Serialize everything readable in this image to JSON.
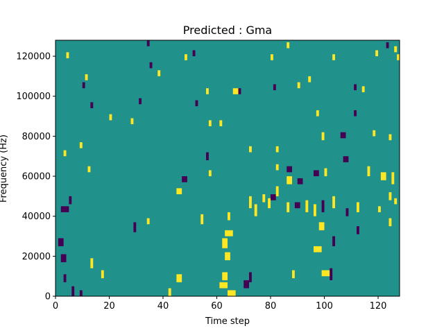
{
  "chart_data": {
    "type": "heatmap",
    "title": "Predicted : Gma",
    "xlabel": "Time step",
    "ylabel": "Frequency (Hz)",
    "xlim": [
      0,
      128
    ],
    "ylim": [
      0,
      128000
    ],
    "xticks": [
      0,
      20,
      40,
      60,
      80,
      100,
      120
    ],
    "yticks": [
      0,
      20000,
      40000,
      60000,
      80000,
      100000,
      120000
    ],
    "xtick_labels": [
      "0",
      "20",
      "40",
      "60",
      "80",
      "100",
      "120"
    ],
    "ytick_labels": [
      "0",
      "20000",
      "40000",
      "60000",
      "80000",
      "100000",
      "120000"
    ],
    "grid": false,
    "colormap": "viridis",
    "colors": {
      "background": "#21918c",
      "high": "#fde725",
      "low": "#440154"
    },
    "background_value": 0,
    "cells": [
      {
        "x": 64,
        "y": 0,
        "w": 3,
        "h": 3,
        "v": 1
      },
      {
        "x": 61,
        "y": 4,
        "w": 3,
        "h": 3,
        "v": 1
      },
      {
        "x": 70,
        "y": 4,
        "w": 2,
        "h": 4,
        "v": -1
      },
      {
        "x": 42,
        "y": 0,
        "w": 1,
        "h": 4,
        "v": 1
      },
      {
        "x": 45,
        "y": 7,
        "w": 2,
        "h": 4,
        "v": 1
      },
      {
        "x": 62,
        "y": 8,
        "w": 2,
        "h": 4,
        "v": 1
      },
      {
        "x": 72,
        "y": 7,
        "w": 1,
        "h": 5,
        "v": -1
      },
      {
        "x": 99,
        "y": 10,
        "w": 3,
        "h": 3,
        "v": 1
      },
      {
        "x": 102,
        "y": 8,
        "w": 1,
        "h": 6,
        "v": -1
      },
      {
        "x": 88,
        "y": 9,
        "w": 1,
        "h": 4,
        "v": 1
      },
      {
        "x": 17,
        "y": 9,
        "w": 1,
        "h": 4,
        "v": 1
      },
      {
        "x": 6,
        "y": 0,
        "w": 1,
        "h": 5,
        "v": -1
      },
      {
        "x": 9,
        "y": 0,
        "w": 1,
        "h": 3,
        "v": -1
      },
      {
        "x": 3,
        "y": 7,
        "w": 1,
        "h": 4,
        "v": -1
      },
      {
        "x": 13,
        "y": 14,
        "w": 1,
        "h": 5,
        "v": 1
      },
      {
        "x": 2,
        "y": 17,
        "w": 2,
        "h": 4,
        "v": -1
      },
      {
        "x": 1,
        "y": 25,
        "w": 2,
        "h": 4,
        "v": -1
      },
      {
        "x": 63,
        "y": 18,
        "w": 2,
        "h": 4,
        "v": 1
      },
      {
        "x": 62,
        "y": 24,
        "w": 2,
        "h": 5,
        "v": 1
      },
      {
        "x": 63,
        "y": 30,
        "w": 3,
        "h": 3,
        "v": 1
      },
      {
        "x": 96,
        "y": 22,
        "w": 3,
        "h": 3,
        "v": 1
      },
      {
        "x": 103,
        "y": 25,
        "w": 1,
        "h": 5,
        "v": -1
      },
      {
        "x": 98,
        "y": 33,
        "w": 2,
        "h": 4,
        "v": 1
      },
      {
        "x": 112,
        "y": 31,
        "w": 1,
        "h": 4,
        "v": -1
      },
      {
        "x": 124,
        "y": 35,
        "w": 1,
        "h": 4,
        "v": 1
      },
      {
        "x": 2,
        "y": 42,
        "w": 3,
        "h": 3,
        "v": -1
      },
      {
        "x": 5,
        "y": 46,
        "w": 1,
        "h": 4,
        "v": -1
      },
      {
        "x": 29,
        "y": 32,
        "w": 1,
        "h": 5,
        "v": -1
      },
      {
        "x": 34,
        "y": 36,
        "w": 1,
        "h": 3,
        "v": 1
      },
      {
        "x": 54,
        "y": 36,
        "w": 1,
        "h": 5,
        "v": 1
      },
      {
        "x": 64,
        "y": 38,
        "w": 1,
        "h": 4,
        "v": 1
      },
      {
        "x": 72,
        "y": 44,
        "w": 1,
        "h": 6,
        "v": 1
      },
      {
        "x": 74,
        "y": 40,
        "w": 1,
        "h": 6,
        "v": 1
      },
      {
        "x": 77,
        "y": 47,
        "w": 1,
        "h": 4,
        "v": 1
      },
      {
        "x": 79,
        "y": 44,
        "w": 1,
        "h": 5,
        "v": 1
      },
      {
        "x": 80,
        "y": 48,
        "w": 2,
        "h": 3,
        "v": -1
      },
      {
        "x": 82,
        "y": 50,
        "w": 1,
        "h": 5,
        "v": 1
      },
      {
        "x": 86,
        "y": 42,
        "w": 1,
        "h": 5,
        "v": 1
      },
      {
        "x": 89,
        "y": 44,
        "w": 2,
        "h": 3,
        "v": -1
      },
      {
        "x": 93,
        "y": 42,
        "w": 1,
        "h": 6,
        "v": 1
      },
      {
        "x": 96,
        "y": 40,
        "w": 1,
        "h": 6,
        "v": 1
      },
      {
        "x": 99,
        "y": 42,
        "w": 1,
        "h": 6,
        "v": -1
      },
      {
        "x": 103,
        "y": 44,
        "w": 1,
        "h": 6,
        "v": 1
      },
      {
        "x": 108,
        "y": 40,
        "w": 1,
        "h": 4,
        "v": -1
      },
      {
        "x": 112,
        "y": 42,
        "w": 1,
        "h": 5,
        "v": 1
      },
      {
        "x": 120,
        "y": 42,
        "w": 1,
        "h": 3,
        "v": 1
      },
      {
        "x": 124,
        "y": 48,
        "w": 1,
        "h": 4,
        "v": 1
      },
      {
        "x": 126,
        "y": 46,
        "w": 1,
        "h": 3,
        "v": 1
      },
      {
        "x": 45,
        "y": 51,
        "w": 2,
        "h": 3,
        "v": 1
      },
      {
        "x": 47,
        "y": 57,
        "w": 2,
        "h": 3,
        "v": -1
      },
      {
        "x": 86,
        "y": 56,
        "w": 2,
        "h": 4,
        "v": 1
      },
      {
        "x": 86,
        "y": 62,
        "w": 2,
        "h": 3,
        "v": -1
      },
      {
        "x": 90,
        "y": 56,
        "w": 2,
        "h": 3,
        "v": -1
      },
      {
        "x": 96,
        "y": 60,
        "w": 2,
        "h": 3,
        "v": -1
      },
      {
        "x": 107,
        "y": 67,
        "w": 2,
        "h": 3,
        "v": -1
      },
      {
        "x": 121,
        "y": 58,
        "w": 2,
        "h": 4,
        "v": 1
      },
      {
        "x": 125,
        "y": 56,
        "w": 1,
        "h": 6,
        "v": 1
      },
      {
        "x": 100,
        "y": 60,
        "w": 1,
        "h": 4,
        "v": 1
      },
      {
        "x": 116,
        "y": 60,
        "w": 1,
        "h": 5,
        "v": 1
      },
      {
        "x": 82,
        "y": 63,
        "w": 1,
        "h": 3,
        "v": 1
      },
      {
        "x": 57,
        "y": 60,
        "w": 1,
        "h": 3,
        "v": 1
      },
      {
        "x": 12,
        "y": 62,
        "w": 1,
        "h": 3,
        "v": 1
      },
      {
        "x": 9,
        "y": 74,
        "w": 1,
        "h": 3,
        "v": 1
      },
      {
        "x": 3,
        "y": 70,
        "w": 1,
        "h": 3,
        "v": 1
      },
      {
        "x": 56,
        "y": 68,
        "w": 1,
        "h": 4,
        "v": -1
      },
      {
        "x": 72,
        "y": 72,
        "w": 1,
        "h": 3,
        "v": 1
      },
      {
        "x": 82,
        "y": 72,
        "w": 1,
        "h": 3,
        "v": 1
      },
      {
        "x": 99,
        "y": 78,
        "w": 1,
        "h": 4,
        "v": 1
      },
      {
        "x": 106,
        "y": 79,
        "w": 2,
        "h": 3,
        "v": -1
      },
      {
        "x": 118,
        "y": 80,
        "w": 1,
        "h": 3,
        "v": 1
      },
      {
        "x": 124,
        "y": 78,
        "w": 1,
        "h": 3,
        "v": 1
      },
      {
        "x": 111,
        "y": 90,
        "w": 1,
        "h": 3,
        "v": -1
      },
      {
        "x": 97,
        "y": 90,
        "w": 1,
        "h": 3,
        "v": 1
      },
      {
        "x": 61,
        "y": 85,
        "w": 1,
        "h": 3,
        "v": 1
      },
      {
        "x": 57,
        "y": 85,
        "w": 1,
        "h": 3,
        "v": 1
      },
      {
        "x": 52,
        "y": 95,
        "w": 1,
        "h": 3,
        "v": -1
      },
      {
        "x": 31,
        "y": 96,
        "w": 1,
        "h": 3,
        "v": -1
      },
      {
        "x": 28,
        "y": 86,
        "w": 1,
        "h": 3,
        "v": 1
      },
      {
        "x": 13,
        "y": 94,
        "w": 1,
        "h": 3,
        "v": -1
      },
      {
        "x": 20,
        "y": 88,
        "w": 1,
        "h": 3,
        "v": 1
      },
      {
        "x": 66,
        "y": 101,
        "w": 2,
        "h": 3,
        "v": 1
      },
      {
        "x": 68,
        "y": 101,
        "w": 1,
        "h": 3,
        "v": -1
      },
      {
        "x": 81,
        "y": 103,
        "w": 1,
        "h": 3,
        "v": -1
      },
      {
        "x": 90,
        "y": 104,
        "w": 1,
        "h": 3,
        "v": 1
      },
      {
        "x": 94,
        "y": 107,
        "w": 1,
        "h": 3,
        "v": 1
      },
      {
        "x": 111,
        "y": 103,
        "w": 1,
        "h": 3,
        "v": -1
      },
      {
        "x": 114,
        "y": 102,
        "w": 1,
        "h": 3,
        "v": 1
      },
      {
        "x": 10,
        "y": 104,
        "w": 1,
        "h": 3,
        "v": -1
      },
      {
        "x": 11,
        "y": 108,
        "w": 1,
        "h": 3,
        "v": 1
      },
      {
        "x": 56,
        "y": 101,
        "w": 1,
        "h": 3,
        "v": 1
      },
      {
        "x": 35,
        "y": 114,
        "w": 1,
        "h": 3,
        "v": -1
      },
      {
        "x": 38,
        "y": 110,
        "w": 1,
        "h": 3,
        "v": 1
      },
      {
        "x": 48,
        "y": 118,
        "w": 1,
        "h": 3,
        "v": 1
      },
      {
        "x": 80,
        "y": 118,
        "w": 1,
        "h": 3,
        "v": 1
      },
      {
        "x": 103,
        "y": 118,
        "w": 1,
        "h": 3,
        "v": 1
      },
      {
        "x": 119,
        "y": 120,
        "w": 1,
        "h": 3,
        "v": 1
      },
      {
        "x": 123,
        "y": 124,
        "w": 1,
        "h": 3,
        "v": -1
      },
      {
        "x": 126,
        "y": 122,
        "w": 1,
        "h": 3,
        "v": 1
      },
      {
        "x": 127,
        "y": 118,
        "w": 1,
        "h": 3,
        "v": 1
      },
      {
        "x": 4,
        "y": 119,
        "w": 1,
        "h": 3,
        "v": 1
      },
      {
        "x": 34,
        "y": 125,
        "w": 1,
        "h": 3,
        "v": -1
      },
      {
        "x": 51,
        "y": 120,
        "w": 1,
        "h": 3,
        "v": -1
      },
      {
        "x": 86,
        "y": 124,
        "w": 1,
        "h": 3,
        "v": 1
      }
    ]
  }
}
